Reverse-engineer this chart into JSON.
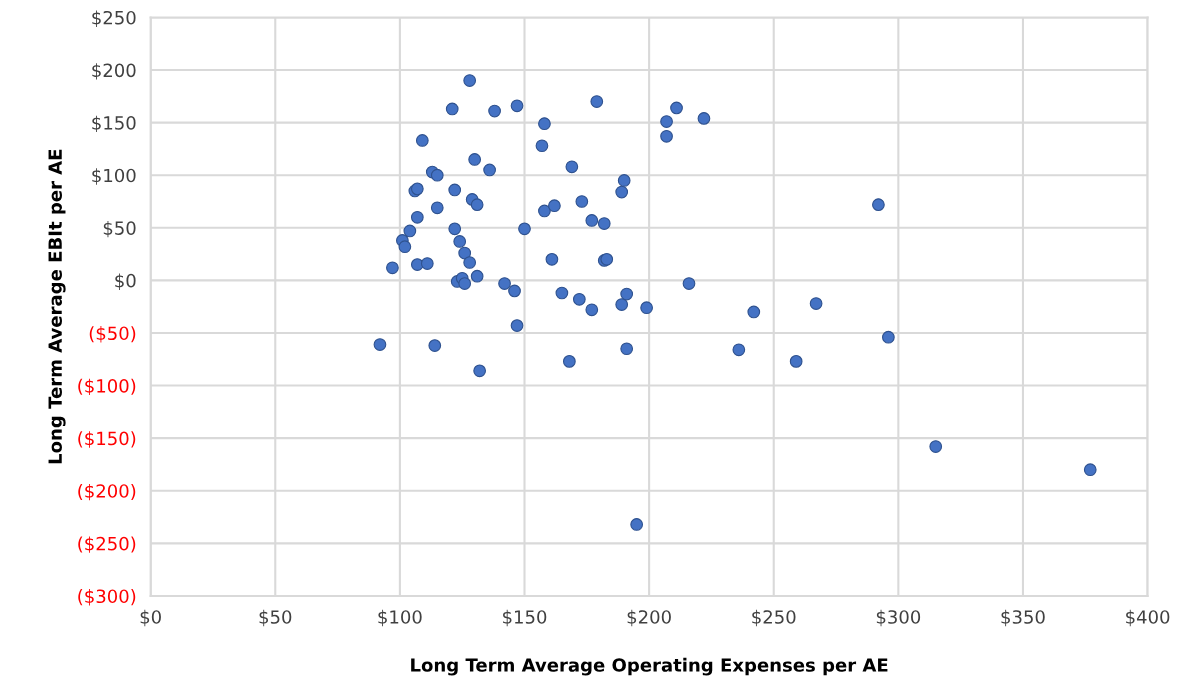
{
  "chart_data": {
    "type": "scatter",
    "xlabel": "Long Term Average Operating Expenses per AE",
    "ylabel": "Long Term Average EBIt per AE",
    "x": [
      92,
      97,
      101,
      102,
      104,
      106,
      107,
      107,
      107,
      111,
      109,
      113,
      115,
      115,
      114,
      121,
      122,
      122,
      124,
      123,
      125,
      126,
      126,
      128,
      129,
      128,
      130,
      131,
      131,
      136,
      138,
      132,
      142,
      146,
      147,
      147,
      150,
      158,
      157,
      158,
      162,
      161,
      165,
      169,
      168,
      172,
      173,
      177,
      179,
      177,
      182,
      182,
      183,
      189,
      190,
      189,
      191,
      191,
      199,
      195,
      207,
      207,
      211,
      222,
      216,
      242,
      236,
      267,
      259,
      292,
      296,
      315,
      377
    ],
    "values": [
      -61,
      12,
      38,
      32,
      47,
      85,
      87,
      60,
      15,
      16,
      133,
      103,
      100,
      69,
      -62,
      163,
      86,
      49,
      37,
      -1,
      2,
      -3,
      26,
      17,
      77,
      190,
      115,
      72,
      4,
      105,
      161,
      -86,
      -3,
      -10,
      166,
      -43,
      49,
      149,
      128,
      66,
      71,
      20,
      -12,
      108,
      -77,
      -18,
      75,
      57,
      170,
      -28,
      54,
      19,
      20,
      84,
      95,
      -23,
      -13,
      -65,
      -26,
      -232,
      151,
      137,
      164,
      154,
      -3,
      -30,
      -66,
      -22,
      -77,
      72,
      -54,
      -158,
      -180
    ],
    "color": "#4472c4",
    "marker": "circle",
    "grid": true,
    "xlim": [
      0,
      400
    ],
    "xticks": [
      {
        "value": 0,
        "label": "$0"
      },
      {
        "value": 50,
        "label": "$50"
      },
      {
        "value": 100,
        "label": "$100"
      },
      {
        "value": 150,
        "label": "$150"
      },
      {
        "value": 200,
        "label": "$200"
      },
      {
        "value": 250,
        "label": "$250"
      },
      {
        "value": 300,
        "label": "$300"
      },
      {
        "value": 350,
        "label": "$350"
      },
      {
        "value": 400,
        "label": "$400"
      }
    ],
    "ylim": [
      -300,
      250
    ],
    "yticks": [
      {
        "value": -300,
        "label": "($300)"
      },
      {
        "value": -250,
        "label": "($250)"
      },
      {
        "value": -200,
        "label": "($200)"
      },
      {
        "value": -150,
        "label": "($150)"
      },
      {
        "value": -100,
        "label": "($100)"
      },
      {
        "value": -50,
        "label": "($50)"
      },
      {
        "value": 0,
        "label": "$0"
      },
      {
        "value": 50,
        "label": "$50"
      },
      {
        "value": 100,
        "label": "$100"
      },
      {
        "value": 150,
        "label": "$150"
      },
      {
        "value": 200,
        "label": "$200"
      },
      {
        "value": 250,
        "label": "$250"
      }
    ]
  }
}
